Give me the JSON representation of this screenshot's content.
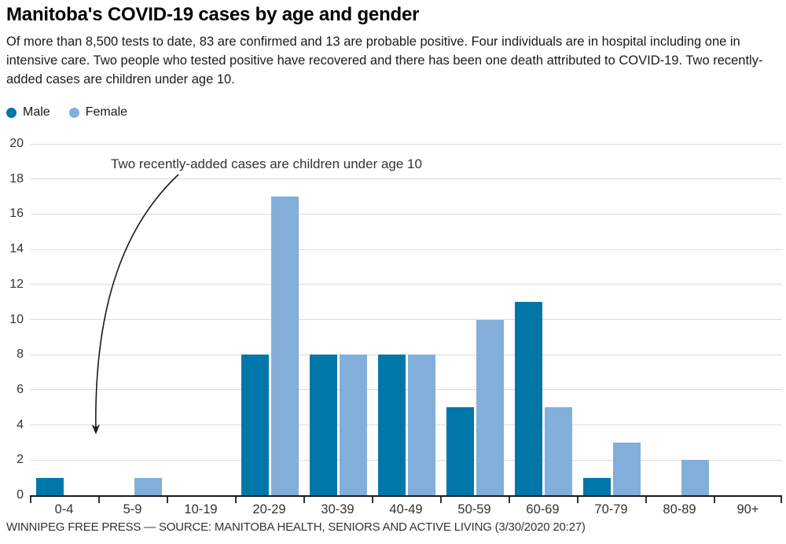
{
  "header": {
    "title": "Manitoba's COVID-19 cases by age and gender",
    "subtitle": "Of more than 8,500 tests to date, 83 are confirmed and 13 are probable positive. Four individuals are in hospital including one in intensive care. Two people who tested positive have recovered and there has been one death attributed to COVID-19. Two recently-added cases are children under age 10."
  },
  "legend": [
    {
      "label": "Male",
      "color": "#0077a8"
    },
    {
      "label": "Female",
      "color": "#82afd9"
    }
  ],
  "chart_data": {
    "type": "bar",
    "title": "Manitoba's COVID-19 cases by age and gender",
    "categories": [
      "0-4",
      "5-9",
      "10-19",
      "20-29",
      "30-39",
      "40-49",
      "50-59",
      "60-69",
      "70-79",
      "80-89",
      "90+"
    ],
    "series": [
      {
        "name": "Male",
        "color": "#0077a8",
        "values": [
          1,
          0,
          0,
          8,
          8,
          8,
          5,
          11,
          1,
          0,
          0
        ]
      },
      {
        "name": "Female",
        "color": "#82afd9",
        "values": [
          0,
          1,
          0,
          17,
          8,
          8,
          10,
          5,
          3,
          2,
          0
        ]
      }
    ],
    "xlabel": "",
    "ylabel": "",
    "ylim": [
      0,
      20
    ],
    "yticks": [
      0,
      2,
      4,
      6,
      8,
      10,
      12,
      14,
      16,
      18,
      20
    ],
    "grid": "horizontal",
    "legend_position": "top-left",
    "annotation": {
      "text": "Two recently-added cases are children under age 10"
    },
    "colors": {
      "grid": "#dcdcdc",
      "axis": "#1a1a1a",
      "tick_text": "#333333",
      "arrow": "#1a1a1a"
    }
  },
  "footer": {
    "credit": "WINNIPEG FREE PRESS — SOURCE: MANITOBA HEALTH, SENIORS AND ACTIVE LIVING (3/30/2020 20:27)"
  }
}
